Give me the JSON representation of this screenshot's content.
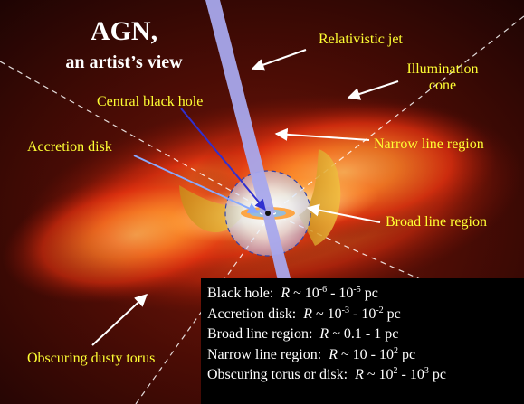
{
  "title": {
    "main": "AGN,",
    "sub": "an artist’s view"
  },
  "labels": {
    "relativistic_jet": "Relativistic jet",
    "illumination_cone_1": "Illumination",
    "illumination_cone_2": "cone",
    "central_black_hole": "Central black hole",
    "accretion_disk": "Accretion disk",
    "narrow_line_region": "Narrow line region",
    "broad_line_region": "Broad line region",
    "obscuring_dusty_torus": "Obscuring dusty torus"
  },
  "sizes": [
    {
      "name": "Black hole:",
      "var": "R",
      "approx": "~",
      "lo_base": "10",
      "lo_exp": "-6",
      "dash": "-",
      "hi_base": "10",
      "hi_exp": "-5",
      "unit": "pc"
    },
    {
      "name": "Accretion disk:",
      "var": "R",
      "approx": "~",
      "lo_base": "10",
      "lo_exp": "-3",
      "dash": "-",
      "hi_base": "10",
      "hi_exp": "-2",
      "unit": "pc"
    },
    {
      "name": "Broad line region:",
      "var": "R",
      "approx": "~",
      "lo_base": "0.1",
      "lo_exp": "",
      "dash": "-",
      "hi_base": "1",
      "hi_exp": "",
      "unit": "pc"
    },
    {
      "name": "Narrow line region:",
      "var": "R",
      "approx": "~",
      "lo_base": "10",
      "lo_exp": "",
      "dash": "-",
      "hi_base": "10",
      "hi_exp": "2",
      "unit": "pc"
    },
    {
      "name": "Obscuring torus or disk:",
      "var": "R",
      "approx": "~",
      "lo_base": "10",
      "lo_exp": "2",
      "dash": "-",
      "hi_base": "10",
      "hi_exp": "3",
      "unit": "pc"
    }
  ],
  "colors": {
    "label_text": "#ffff33",
    "title_text": "#ffffff",
    "jet": "#aaaaee",
    "arrow_white": "#ffffff",
    "arrow_blue": "#3030d0",
    "arrow_lightblue": "#88aaff"
  }
}
